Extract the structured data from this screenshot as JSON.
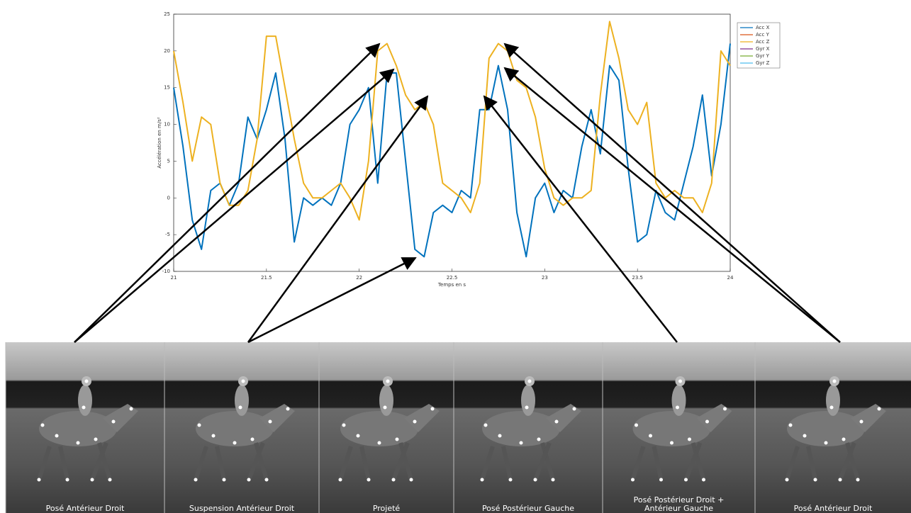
{
  "chart_data": {
    "type": "line",
    "xlabel": "Temps en s",
    "ylabel": "Accélération en m/s²",
    "xlim": [
      21,
      24
    ],
    "xticks": [
      21,
      21.5,
      22,
      22.5,
      23,
      23.5,
      24
    ],
    "ylim": [
      -10,
      25
    ],
    "yticks": [
      -10,
      -5,
      0,
      5,
      10,
      15,
      20,
      25
    ],
    "legend_position": "upper right",
    "x": [
      21,
      21.05,
      21.1,
      21.15,
      21.2,
      21.25,
      21.3,
      21.35,
      21.4,
      21.45,
      21.5,
      21.55,
      21.6,
      21.65,
      21.7,
      21.75,
      21.8,
      21.85,
      21.9,
      21.95,
      22,
      22.05,
      22.1,
      22.15,
      22.2,
      22.25,
      22.3,
      22.35,
      22.4,
      22.45,
      22.5,
      22.55,
      22.6,
      22.65,
      22.7,
      22.75,
      22.8,
      22.85,
      22.9,
      22.95,
      23,
      23.05,
      23.1,
      23.15,
      23.2,
      23.25,
      23.3,
      23.35,
      23.4,
      23.45,
      23.5,
      23.55,
      23.6,
      23.65,
      23.7,
      23.75,
      23.8,
      23.85,
      23.9,
      23.95,
      24
    ],
    "series": [
      {
        "name": "Acc X",
        "color": "#0072bd",
        "values": [
          15,
          7,
          -3,
          -7,
          1,
          2,
          -1,
          2,
          11,
          8,
          12,
          17,
          8,
          -6,
          0,
          -1,
          0,
          -1,
          2,
          10,
          12,
          15,
          2,
          17,
          17,
          5,
          -7,
          -8,
          -2,
          -1,
          -2,
          1,
          0,
          12,
          12,
          18,
          12,
          -2,
          -8,
          0,
          2,
          -2,
          1,
          0,
          7,
          12,
          6,
          18,
          16,
          4,
          -6,
          -5,
          1,
          -2,
          -3,
          2,
          7,
          14,
          3,
          10,
          21
        ]
      },
      {
        "name": "Acc Y",
        "color": "#d95319",
        "values": [
          null,
          null,
          null,
          null,
          null,
          null,
          null,
          null,
          null,
          null,
          null,
          null,
          null,
          null,
          null,
          null,
          null,
          null,
          null,
          null,
          null,
          null,
          null,
          null,
          null,
          null,
          null,
          null,
          null,
          null,
          null,
          null,
          null,
          null,
          null,
          null,
          null,
          null,
          null,
          null,
          null,
          null,
          null,
          null,
          null,
          null,
          null,
          null,
          null,
          null,
          null,
          null,
          null,
          null,
          null,
          null,
          null,
          null,
          null,
          null,
          null
        ]
      },
      {
        "name": "Acc Z",
        "color": "#edb120",
        "values": [
          20,
          13,
          5,
          11,
          10,
          2,
          -1,
          -1,
          1,
          8,
          22,
          22,
          15,
          8,
          2,
          0,
          0,
          1,
          2,
          0,
          -3,
          5,
          20,
          21,
          18,
          14,
          12,
          13,
          10,
          2,
          1,
          0,
          -2,
          2,
          19,
          21,
          20,
          16,
          15,
          11,
          4,
          0,
          -1,
          0,
          0,
          1,
          14,
          24,
          19,
          12,
          10,
          13,
          2,
          0,
          1,
          0,
          0,
          -2,
          2,
          20,
          18
        ]
      },
      {
        "name": "Gyr X",
        "color": "#7e2f8e",
        "values": [
          null,
          null,
          null,
          null,
          null,
          null,
          null,
          null,
          null,
          null,
          null,
          null,
          null,
          null,
          null,
          null,
          null,
          null,
          null,
          null,
          null,
          null,
          null,
          null,
          null,
          null,
          null,
          null,
          null,
          null,
          null,
          null,
          null,
          null,
          null,
          null,
          null,
          null,
          null,
          null,
          null,
          null,
          null,
          null,
          null,
          null,
          null,
          null,
          null,
          null,
          null,
          null,
          null,
          null,
          null,
          null,
          null,
          null,
          null,
          null,
          null
        ]
      },
      {
        "name": "Gyr Y",
        "color": "#77ac30",
        "values": [
          null,
          null,
          null,
          null,
          null,
          null,
          null,
          null,
          null,
          null,
          null,
          null,
          null,
          null,
          null,
          null,
          null,
          null,
          null,
          null,
          null,
          null,
          null,
          null,
          null,
          null,
          null,
          null,
          null,
          null,
          null,
          null,
          null,
          null,
          null,
          null,
          null,
          null,
          null,
          null,
          null,
          null,
          null,
          null,
          null,
          null,
          null,
          null,
          null,
          null,
          null,
          null,
          null,
          null,
          null,
          null,
          null,
          null,
          null,
          null,
          null
        ]
      },
      {
        "name": "Gyr Z",
        "color": "#4dbeee",
        "values": [
          null,
          null,
          null,
          null,
          null,
          null,
          null,
          null,
          null,
          null,
          null,
          null,
          null,
          null,
          null,
          null,
          null,
          null,
          null,
          null,
          null,
          null,
          null,
          null,
          null,
          null,
          null,
          null,
          null,
          null,
          null,
          null,
          null,
          null,
          null,
          null,
          null,
          null,
          null,
          null,
          null,
          null,
          null,
          null,
          null,
          null,
          null,
          null,
          null,
          null,
          null,
          null,
          null,
          null,
          null,
          null,
          null,
          null,
          null,
          null,
          null
        ]
      }
    ]
  },
  "photos": [
    {
      "caption": [
        "Posé Antérieur Droit"
      ]
    },
    {
      "caption": [
        "Suspension Antérieur Droit"
      ]
    },
    {
      "caption": [
        "Projeté"
      ]
    },
    {
      "caption": [
        "Posé Postérieur Gauche"
      ]
    },
    {
      "caption": [
        "Posé Postérieur Droit +",
        "Antérieur Gauche"
      ]
    },
    {
      "caption": [
        "Posé Antérieur Droit"
      ]
    }
  ]
}
